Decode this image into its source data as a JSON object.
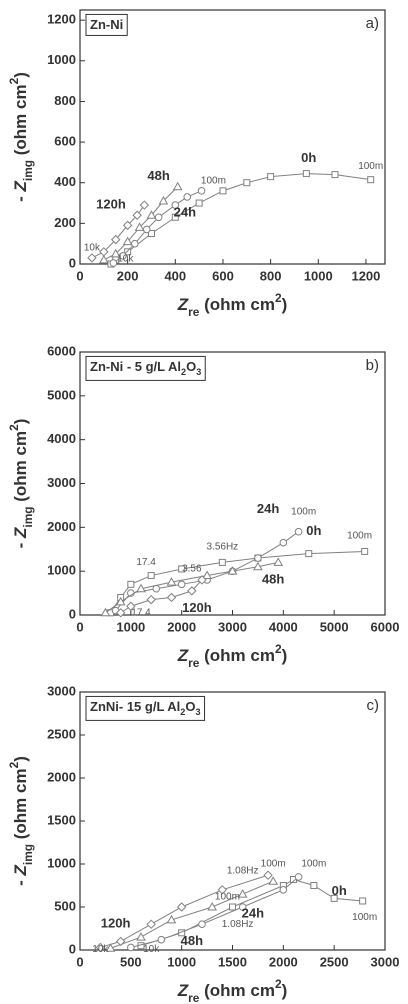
{
  "chart_data": [
    {
      "type": "line",
      "box_label": [
        {
          "text": "Zn-Ni",
          "style": "normal"
        }
      ],
      "panel": "a)",
      "xlabel": [
        {
          "text": "Z",
          "style": "italic"
        },
        {
          "text": "re",
          "style": "sub"
        },
        {
          "text": " (ohm cm",
          "style": "normal"
        },
        {
          "text": "2",
          "style": "sup"
        },
        {
          "text": ")",
          "style": "normal"
        }
      ],
      "ylabel": [
        {
          "text": "- ",
          "style": "normal"
        },
        {
          "text": "Z",
          "style": "italic"
        },
        {
          "text": "img",
          "style": "sub"
        },
        {
          "text": " (ohm cm",
          "style": "normal"
        },
        {
          "text": "2",
          "style": "sup"
        },
        {
          "text": ")",
          "style": "normal"
        }
      ],
      "xlim": [
        0,
        1280
      ],
      "xticks": [
        0,
        200,
        400,
        600,
        800,
        1000,
        1200
      ],
      "ylim": [
        0,
        1250
      ],
      "yticks": [
        0,
        200,
        400,
        600,
        800,
        1000,
        1200
      ],
      "series": [
        {
          "name": "0h",
          "marker": "square",
          "color": "#808080",
          "x": [
            130,
            150,
            200,
            300,
            400,
            500,
            600,
            700,
            800,
            950,
            1070,
            1220
          ],
          "values": [
            0,
            20,
            60,
            150,
            230,
            300,
            360,
            400,
            430,
            445,
            440,
            415
          ]
        },
        {
          "name": "24h",
          "marker": "circle",
          "color": "#808080",
          "x": [
            140,
            180,
            230,
            280,
            330,
            400,
            450,
            510
          ],
          "values": [
            5,
            40,
            100,
            170,
            230,
            290,
            330,
            360
          ]
        },
        {
          "name": "48h",
          "marker": "triangle",
          "color": "#808080",
          "x": [
            100,
            150,
            200,
            250,
            300,
            350,
            410
          ],
          "values": [
            20,
            50,
            110,
            180,
            240,
            310,
            380
          ]
        },
        {
          "name": "120h",
          "marker": "diamond",
          "color": "#808080",
          "x": [
            50,
            100,
            150,
            200,
            240,
            270
          ],
          "values": [
            30,
            60,
            120,
            190,
            240,
            290
          ]
        }
      ],
      "series_labels": [
        {
          "text": "0h",
          "x": 960,
          "y": 520
        },
        {
          "text": "24h",
          "x": 440,
          "y": 250
        },
        {
          "text": "48h",
          "x": 330,
          "y": 430
        },
        {
          "text": "120h",
          "x": 130,
          "y": 290
        }
      ],
      "annotations": [
        {
          "text": "100m",
          "x": 560,
          "y": 410
        },
        {
          "text": "100m",
          "x": 1220,
          "y": 480
        },
        {
          "text": "10k",
          "x": 50,
          "y": 80
        },
        {
          "text": "10k",
          "x": 190,
          "y": 25
        }
      ]
    },
    {
      "type": "line",
      "box_label": [
        {
          "text": "Zn-Ni - 5 g/L Al",
          "style": "normal"
        },
        {
          "text": "2",
          "style": "sub"
        },
        {
          "text": "O",
          "style": "normal"
        },
        {
          "text": "3",
          "style": "sub"
        }
      ],
      "panel": "b)",
      "xlabel": [
        {
          "text": "Z",
          "style": "italic"
        },
        {
          "text": "re",
          "style": "sub"
        },
        {
          "text": " (ohm cm",
          "style": "normal"
        },
        {
          "text": "2",
          "style": "sup"
        },
        {
          "text": ")",
          "style": "normal"
        }
      ],
      "ylabel": [
        {
          "text": "- ",
          "style": "normal"
        },
        {
          "text": "Z",
          "style": "italic"
        },
        {
          "text": "img",
          "style": "sub"
        },
        {
          "text": " (ohm cm",
          "style": "normal"
        },
        {
          "text": "2",
          "style": "sup"
        },
        {
          "text": ")",
          "style": "normal"
        }
      ],
      "xlim": [
        0,
        6000
      ],
      "xticks": [
        0,
        1000,
        2000,
        3000,
        4000,
        5000,
        6000
      ],
      "ylim": [
        0,
        6000
      ],
      "yticks": [
        0,
        1000,
        2000,
        3000,
        4000,
        5000,
        6000
      ],
      "series": [
        {
          "name": "0h",
          "marker": "square",
          "color": "#808080",
          "x": [
            600,
            800,
            1000,
            1400,
            2000,
            2800,
            3500,
            4500,
            5600
          ],
          "values": [
            50,
            400,
            700,
            900,
            1050,
            1200,
            1300,
            1400,
            1450
          ]
        },
        {
          "name": "24h",
          "marker": "circle",
          "color": "#808080",
          "x": [
            700,
            1000,
            1500,
            2000,
            2500,
            3000,
            3500,
            4000,
            4300
          ],
          "values": [
            100,
            500,
            600,
            700,
            800,
            1000,
            1300,
            1650,
            1900
          ]
        },
        {
          "name": "48h",
          "marker": "triangle",
          "color": "#808080",
          "x": [
            500,
            800,
            1200,
            1800,
            2500,
            3000,
            3500,
            3900
          ],
          "values": [
            50,
            300,
            600,
            750,
            900,
            1000,
            1100,
            1200
          ]
        },
        {
          "name": "120h",
          "marker": "diamond",
          "color": "#808080",
          "x": [
            800,
            1000,
            1400,
            1800,
            2200,
            2400
          ],
          "values": [
            50,
            200,
            350,
            400,
            550,
            800
          ]
        }
      ],
      "series_labels": [
        {
          "text": "24h",
          "x": 3700,
          "y": 2400
        },
        {
          "text": "0h",
          "x": 4600,
          "y": 1900
        },
        {
          "text": "48h",
          "x": 3800,
          "y": 800
        },
        {
          "text": "120h",
          "x": 2300,
          "y": 150
        }
      ],
      "annotations": [
        {
          "text": "17.4",
          "x": 1300,
          "y": 1200
        },
        {
          "text": "17.4",
          "x": 1200,
          "y": 50
        },
        {
          "text": "3.56Hz",
          "x": 2800,
          "y": 1550
        },
        {
          "text": "3.56",
          "x": 2200,
          "y": 1050
        },
        {
          "text": "100m",
          "x": 4400,
          "y": 2350
        },
        {
          "text": "100m",
          "x": 5500,
          "y": 1800
        }
      ]
    },
    {
      "type": "line",
      "box_label": [
        {
          "text": "ZnNi- 15 g/L Al",
          "style": "normal"
        },
        {
          "text": "2",
          "style": "sub"
        },
        {
          "text": "O",
          "style": "normal"
        },
        {
          "text": "3",
          "style": "sub"
        }
      ],
      "panel": "c)",
      "xlabel": [
        {
          "text": "Z",
          "style": "italic"
        },
        {
          "text": "re",
          "style": "sub"
        },
        {
          "text": " (ohm cm",
          "style": "normal"
        },
        {
          "text": "2",
          "style": "sup"
        },
        {
          "text": ")",
          "style": "normal"
        }
      ],
      "ylabel": [
        {
          "text": "- ",
          "style": "normal"
        },
        {
          "text": "Z",
          "style": "italic"
        },
        {
          "text": "img",
          "style": "sub"
        },
        {
          "text": " (ohm cm",
          "style": "normal"
        },
        {
          "text": "2",
          "style": "sup"
        },
        {
          "text": ")",
          "style": "normal"
        }
      ],
      "xlim": [
        0,
        3000
      ],
      "xticks": [
        0,
        500,
        1000,
        1500,
        2000,
        2500,
        3000
      ],
      "ylim": [
        0,
        3000
      ],
      "yticks": [
        0,
        500,
        1000,
        1500,
        2000,
        2500,
        3000
      ],
      "series": [
        {
          "name": "0h",
          "marker": "square",
          "color": "#808080",
          "x": [
            600,
            1000,
            1500,
            2000,
            2100,
            2300,
            2500,
            2780
          ],
          "values": [
            50,
            200,
            500,
            750,
            820,
            750,
            600,
            570
          ]
        },
        {
          "name": "24h",
          "marker": "circle",
          "color": "#808080",
          "x": [
            500,
            800,
            1200,
            1600,
            2000,
            2150
          ],
          "values": [
            30,
            120,
            300,
            500,
            700,
            850
          ]
        },
        {
          "name": "48h",
          "marker": "triangle",
          "color": "#808080",
          "x": [
            300,
            600,
            900,
            1300,
            1600,
            1900
          ],
          "values": [
            20,
            150,
            350,
            500,
            650,
            800
          ]
        },
        {
          "name": "120h",
          "marker": "diamond",
          "color": "#808080",
          "x": [
            200,
            400,
            700,
            1000,
            1400,
            1850
          ],
          "values": [
            30,
            100,
            300,
            500,
            700,
            870
          ]
        }
      ],
      "series_labels": [
        {
          "text": "0h",
          "x": 2550,
          "y": 680
        },
        {
          "text": "24h",
          "x": 1700,
          "y": 420
        },
        {
          "text": "48h",
          "x": 1100,
          "y": 100
        },
        {
          "text": "120h",
          "x": 350,
          "y": 300
        }
      ],
      "annotations": [
        {
          "text": "1.08Hz",
          "x": 1600,
          "y": 920
        },
        {
          "text": "1.08Hz",
          "x": 1550,
          "y": 300
        },
        {
          "text": "100m",
          "x": 1450,
          "y": 620
        },
        {
          "text": "100m",
          "x": 1900,
          "y": 1000
        },
        {
          "text": "100m",
          "x": 2300,
          "y": 1000
        },
        {
          "text": "100m",
          "x": 2800,
          "y": 380
        },
        {
          "text": "10k",
          "x": 200,
          "y": 10
        },
        {
          "text": "10k",
          "x": 700,
          "y": 10
        }
      ]
    }
  ]
}
